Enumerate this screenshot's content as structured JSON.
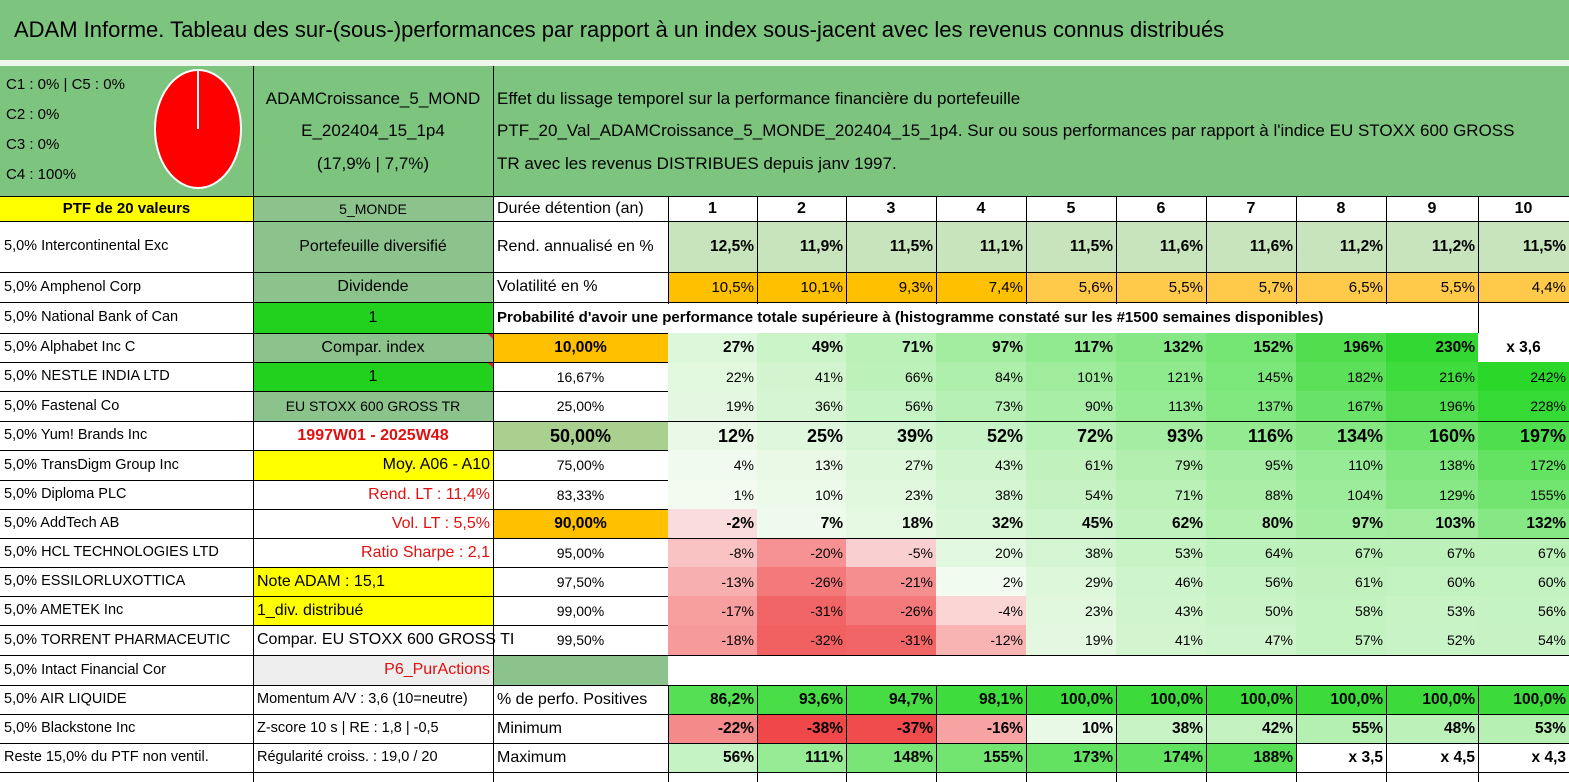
{
  "title": "ADAM Informe. Tableau des sur-(sous-)performances par rapport à un index sous-jacent avec les revenus connus distribués",
  "colors": {
    "header_green": "#7dc57f",
    "mid_green": "#8cc38c",
    "bright_green": "#22d11e",
    "yellow": "#ffff00",
    "orange": "#ffc000",
    "pie_red": "#ff0000",
    "text_red": "#e01010"
  },
  "pie": {
    "legend": [
      "C1 : 0% | C5 : 0%",
      "C2 : 0%",
      "C3 : 0%",
      "C4 : 100%"
    ],
    "shares": [
      0,
      0,
      0,
      1,
      0
    ],
    "slice_color": "#ff0000"
  },
  "portfolio": {
    "name_line1": "ADAMCroissance_5_MOND",
    "name_line2": "E_202404_15_1p4",
    "name_line3": "(17,9% | 7,7%)"
  },
  "description": {
    "line1": "Effet du lissage temporel sur la performance financière du portefeuille",
    "line2": "PTF_20_Val_ADAMCroissance_5_MONDE_202404_15_1p4. Sur ou sous performances par rapport à l'indice EU STOXX 600 GROSS",
    "line3": "TR avec les revenus DISTRIBUES depuis janv 1997."
  },
  "holdings_header": "PTF de 20 valeurs",
  "holdings": [
    "5,0% Intercontinental Exc",
    "5,0% Amphenol Corp",
    "5,0% National Bank of Can",
    "5,0% Alphabet Inc C",
    "5,0% NESTLE INDIA LTD",
    "5,0% Fastenal Co",
    "5,0% Yum! Brands Inc",
    "5,0% TransDigm Group Inc",
    "5,0% Diploma PLC",
    "5,0% AddTech AB",
    "5,0% HCL TECHNOLOGIES LTD",
    "5,0% ESSILORLUXOTTICA",
    "5,0% AMETEK Inc",
    "5,0% TORRENT PHARMACEUTIC",
    "5,0% Intact Financial Cor",
    "5,0% AIR LIQUIDE",
    "5,0% Blackstone Inc",
    "Reste 15,0% du PTF non ventil."
  ],
  "info": [
    "5_MONDE",
    "Portefeuille diversifié",
    "Dividende",
    "1",
    "Compar. index",
    "1",
    "EU STOXX 600 GROSS TR",
    "1997W01 - 2025W48",
    "Moy. A06 - A10",
    "Rend. LT : 11,4%",
    "Vol. LT : 5,5%",
    "Ratio Sharpe : 2,1",
    "Note ADAM : 15,1",
    "1_div. distribué",
    "Compar. EU STOXX 600 GROSS TI",
    "P6_PurActions",
    "Momentum A/V : 3,6 (10=neutre)",
    "Z-score 10 s | RE : 1,8 | -0,5",
    "Régularité croiss. : 19,0 / 20"
  ],
  "table": {
    "duration_label": "Durée détention (an)",
    "years": [
      "1",
      "2",
      "3",
      "4",
      "5",
      "6",
      "7",
      "8",
      "9",
      "10"
    ],
    "return_label": "Rend. annualisé en %",
    "returns": [
      "12,5%",
      "11,9%",
      "11,5%",
      "11,1%",
      "11,5%",
      "11,6%",
      "11,6%",
      "11,2%",
      "11,2%",
      "11,5%"
    ],
    "vol_label": "Volatilité en %",
    "vols": [
      "10,5%",
      "10,1%",
      "9,3%",
      "7,4%",
      "5,6%",
      "5,5%",
      "5,7%",
      "6,5%",
      "5,5%",
      "4,4%"
    ],
    "prob_caption": "Probabilité d'avoir une performance totale supérieure à (histogramme constaté sur les #1500 semaines disponibles)",
    "prob_rows": [
      {
        "label": "10,00%",
        "values": [
          "27%",
          "49%",
          "71%",
          "97%",
          "117%",
          "132%",
          "152%",
          "196%",
          "230%",
          "x 3,6"
        ]
      },
      {
        "label": "16,67%",
        "values": [
          "22%",
          "41%",
          "66%",
          "84%",
          "101%",
          "121%",
          "145%",
          "182%",
          "216%",
          "242%"
        ]
      },
      {
        "label": "25,00%",
        "values": [
          "19%",
          "36%",
          "56%",
          "73%",
          "90%",
          "113%",
          "137%",
          "167%",
          "196%",
          "228%"
        ]
      },
      {
        "label": "50,00%",
        "values": [
          "12%",
          "25%",
          "39%",
          "52%",
          "72%",
          "93%",
          "116%",
          "134%",
          "160%",
          "197%"
        ]
      },
      {
        "label": "75,00%",
        "values": [
          "4%",
          "13%",
          "27%",
          "43%",
          "61%",
          "79%",
          "95%",
          "110%",
          "138%",
          "172%"
        ]
      },
      {
        "label": "83,33%",
        "values": [
          "1%",
          "10%",
          "23%",
          "38%",
          "54%",
          "71%",
          "88%",
          "104%",
          "129%",
          "155%"
        ]
      },
      {
        "label": "90,00%",
        "values": [
          "-2%",
          "7%",
          "18%",
          "32%",
          "45%",
          "62%",
          "80%",
          "97%",
          "103%",
          "132%"
        ]
      },
      {
        "label": "95,00%",
        "values": [
          "-8%",
          "-20%",
          "-5%",
          "20%",
          "38%",
          "53%",
          "64%",
          "67%",
          "67%",
          "67%"
        ]
      },
      {
        "label": "97,50%",
        "values": [
          "-13%",
          "-26%",
          "-21%",
          "2%",
          "29%",
          "46%",
          "56%",
          "61%",
          "60%",
          "60%"
        ]
      },
      {
        "label": "99,00%",
        "values": [
          "-17%",
          "-31%",
          "-26%",
          "-4%",
          "23%",
          "43%",
          "50%",
          "58%",
          "53%",
          "56%"
        ]
      },
      {
        "label": "99,50%",
        "values": [
          "-18%",
          "-32%",
          "-31%",
          "-12%",
          "19%",
          "41%",
          "47%",
          "57%",
          "52%",
          "54%"
        ]
      }
    ],
    "pos_label": "% de perfo. Positives",
    "pos_values": [
      "86,2%",
      "93,6%",
      "94,7%",
      "98,1%",
      "100,0%",
      "100,0%",
      "100,0%",
      "100,0%",
      "100,0%",
      "100,0%"
    ],
    "min_label": "Minimum",
    "min_values": [
      "-22%",
      "-38%",
      "-37%",
      "-16%",
      "10%",
      "38%",
      "42%",
      "55%",
      "48%",
      "53%"
    ],
    "max_label": "Maximum",
    "max_values": [
      "56%",
      "111%",
      "148%",
      "155%",
      "173%",
      "174%",
      "188%",
      "x 3,5",
      "x 4,5",
      "x 4,3"
    ]
  }
}
